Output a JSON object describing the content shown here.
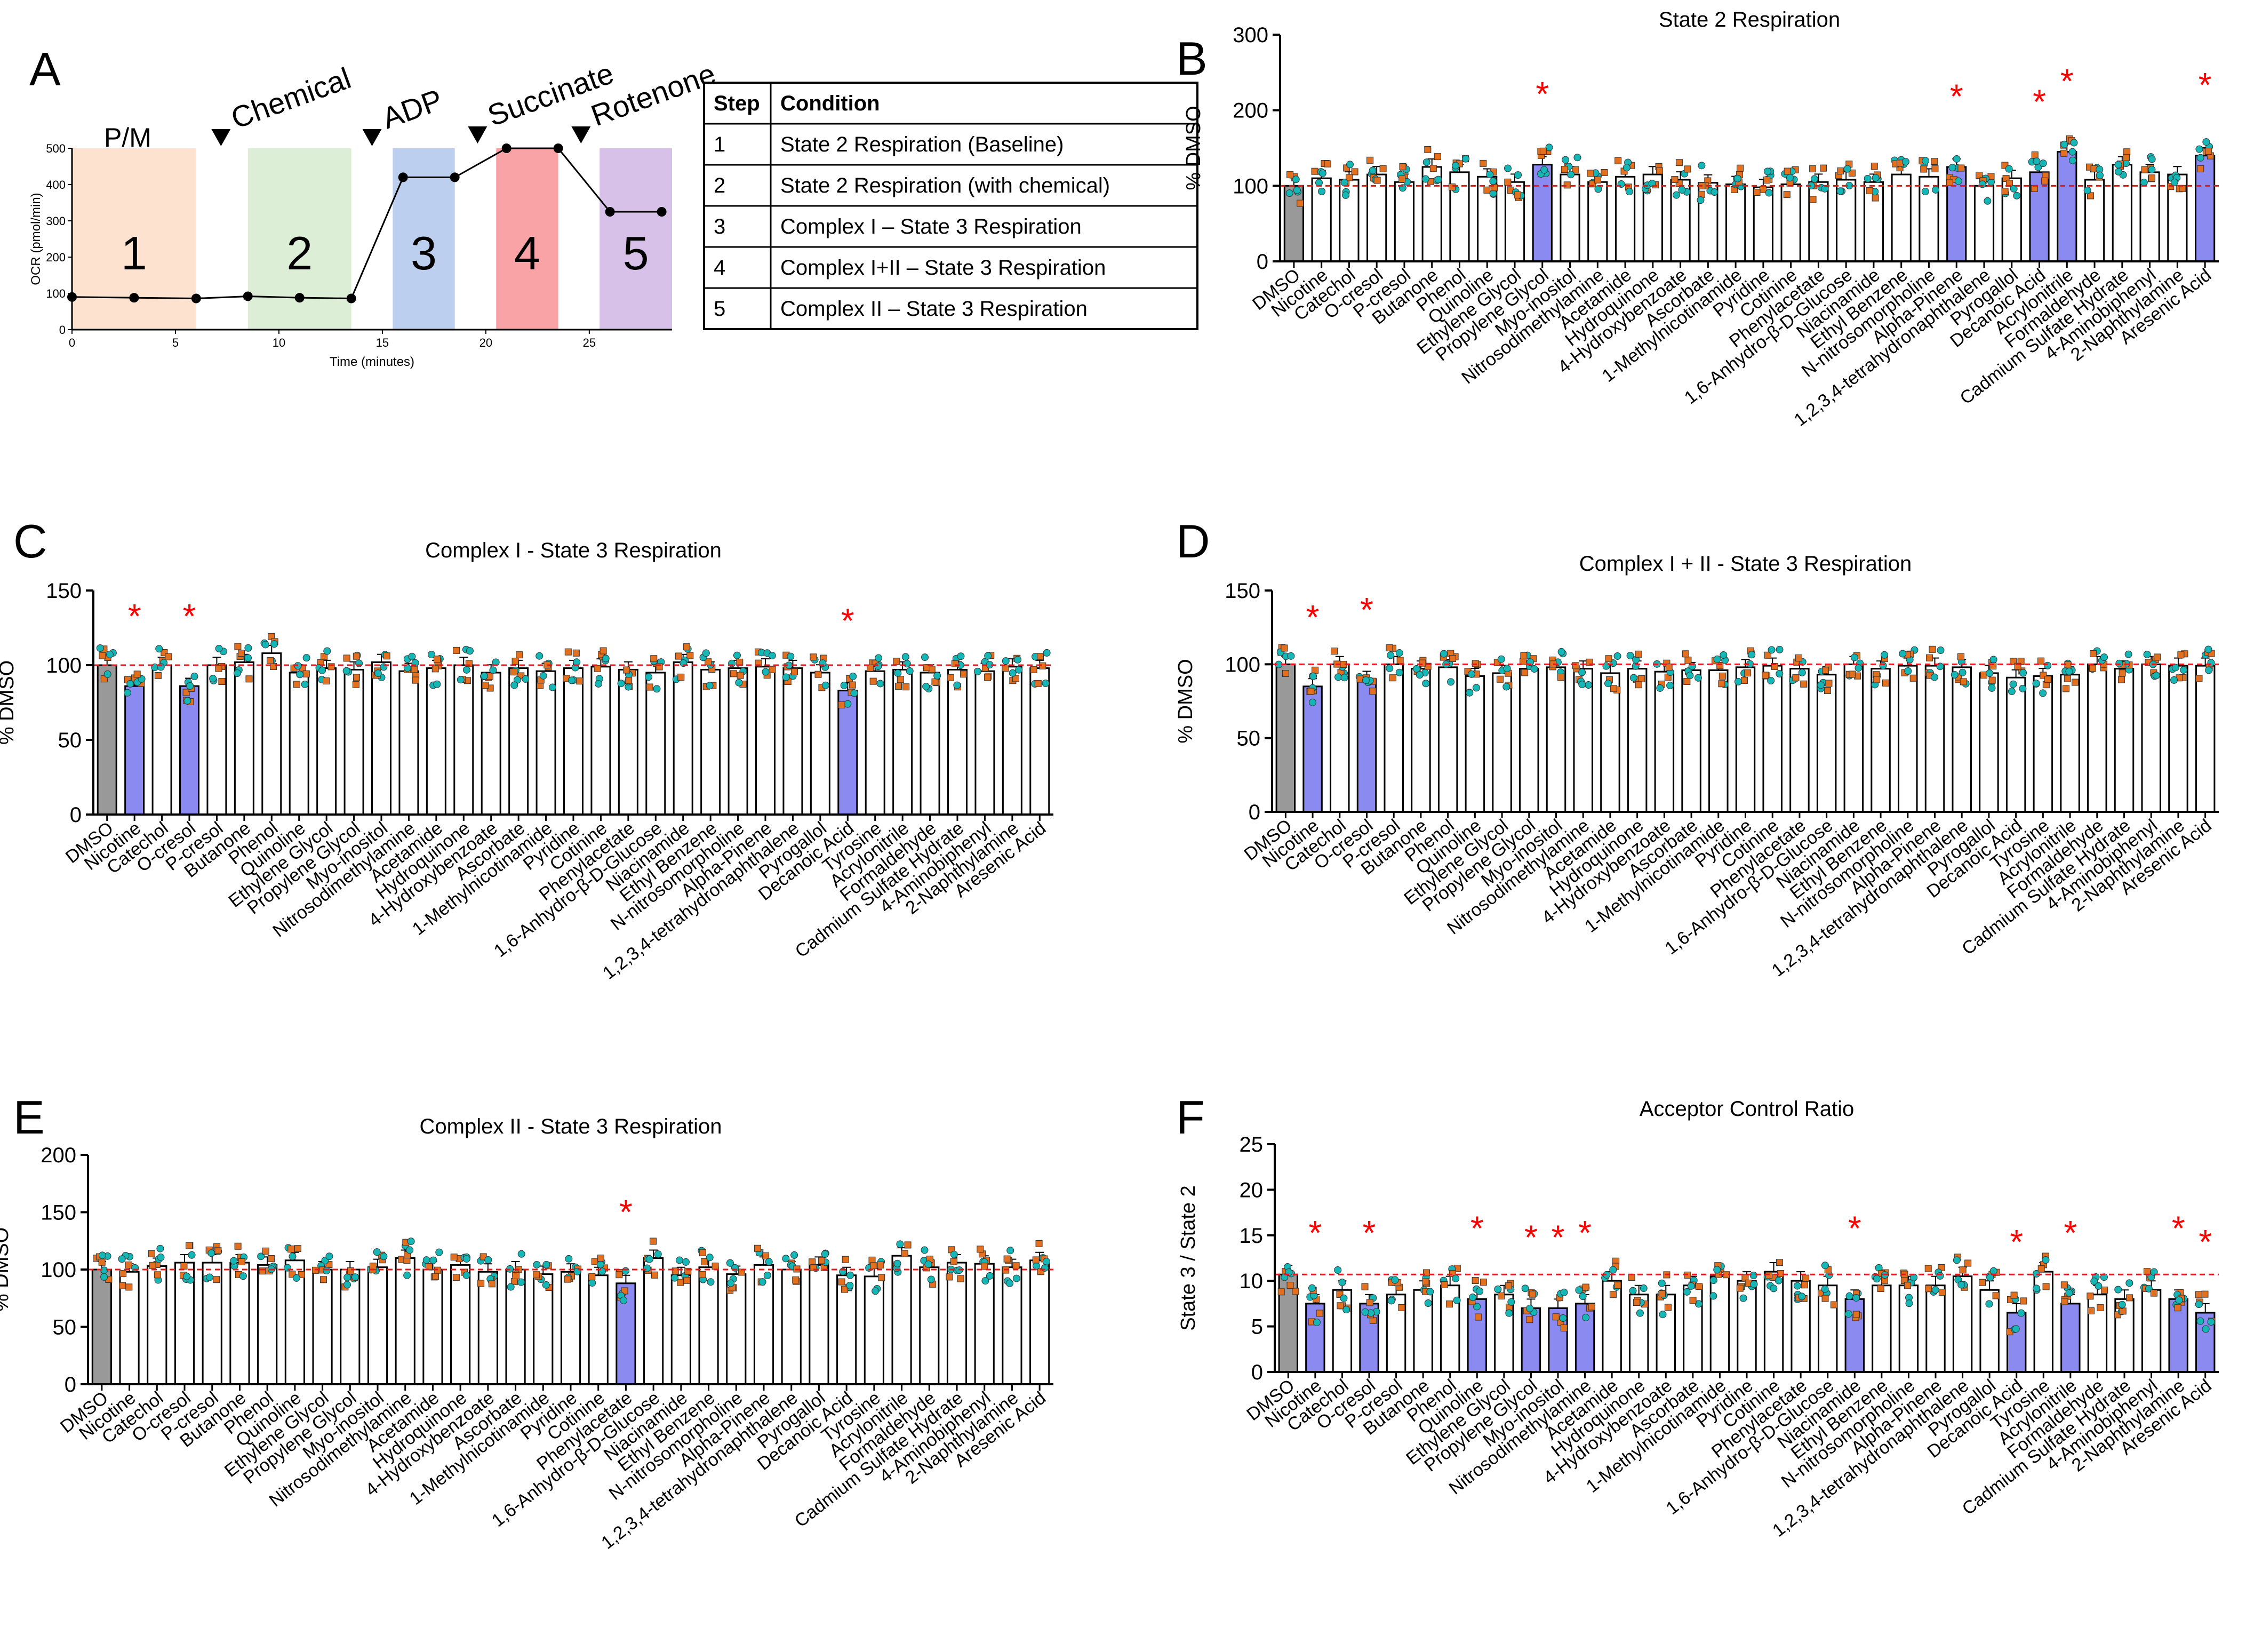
{
  "colors": {
    "control_bar": "#999999",
    "sig_bar": "#8a8af0",
    "orange_point": "#e2701f",
    "teal_point": "#15b6b6",
    "reference_line": "#e21a1a",
    "star": "#ff0000",
    "step1": "#fde3cf",
    "step2": "#dcefd6",
    "step3": "#bccfee",
    "step4": "#f9a3a6",
    "step5": "#d8c1e8"
  },
  "panel_a": {
    "letter": "A",
    "y_label": "OCR (pmol/min)",
    "x_label": "Time (minutes)",
    "y_ticks": [
      "0",
      "100",
      "200",
      "300",
      "400",
      "500"
    ],
    "x_ticks": [
      "0",
      "5",
      "10",
      "15",
      "20",
      "25"
    ],
    "injections": [
      "Chemical",
      "ADP",
      "Succinate",
      "Rotenone"
    ],
    "start_label": "P/M",
    "region_numbers": [
      "1",
      "2",
      "3",
      "4",
      "5"
    ],
    "table": {
      "headers": [
        "Step",
        "Condition"
      ],
      "rows": [
        [
          "1",
          "State 2 Respiration (Baseline)"
        ],
        [
          "2",
          "State 2 Respiration (with chemical)"
        ],
        [
          "3",
          "Complex I – State 3 Respiration"
        ],
        [
          "4",
          "Complex I+II – State 3 Respiration"
        ],
        [
          "5",
          "Complex II – State 3 Respiration"
        ]
      ]
    }
  },
  "chart_data": [
    {
      "type": "line",
      "panel": "A",
      "title": "",
      "xlabel": "Time (minutes)",
      "ylabel": "OCR (pmol/min)",
      "xlim": [
        0,
        29
      ],
      "ylim": [
        0,
        500
      ],
      "x": [
        0,
        3,
        6,
        8.5,
        11,
        13.5,
        16,
        18.5,
        21,
        23.5,
        26,
        28.5
      ],
      "values": [
        90,
        88,
        86,
        92,
        88,
        86,
        420,
        420,
        500,
        500,
        325,
        325
      ]
    },
    {
      "type": "bar",
      "panel": "B",
      "title": "State 2 Respiration",
      "xlabel": "",
      "ylabel": "% DMSO",
      "ylim": [
        0,
        300
      ],
      "yticks": [
        "0",
        "100",
        "200",
        "300"
      ],
      "reference": 100,
      "categories": [
        "DMSO",
        "Nicotine",
        "Catechol",
        "O-cresol",
        "P-cresol",
        "Butanone",
        "Phenol",
        "Quinoline",
        "Ethylene Glycol",
        "Propylene Glycol",
        "Myo-inositol",
        "Nitrosodimethylamine",
        "Acetamide",
        "Hydroquinone",
        "4-Hydroxybenzoate",
        "Ascorbate",
        "1-Methylnicotinamide",
        "Pyridine",
        "Cotinine",
        "Phenylacetate",
        "1,6-Anhydro-β-D-Glucose",
        "Niacinamide",
        "Ethyl Benzene",
        "N-nitrosomorpholine",
        "Alpha-Pinene",
        "1,2,3,4-tetrahydronaphthalene",
        "Pyrogallol",
        "Decanoic Acid",
        "Acrylonitrile",
        "Formaldehyde",
        "Cadmium Sulfate Hydrate",
        "4-Aminobiphenyl",
        "2-Naphthylamine",
        "Aresenic Acid"
      ],
      "values": [
        100,
        110,
        108,
        115,
        105,
        125,
        118,
        112,
        105,
        128,
        115,
        105,
        112,
        115,
        108,
        104,
        102,
        98,
        102,
        105,
        108,
        105,
        115,
        112,
        125,
        100,
        110,
        118,
        145,
        108,
        128,
        118,
        115,
        140
      ],
      "significant": [
        false,
        false,
        false,
        false,
        false,
        false,
        false,
        false,
        false,
        true,
        false,
        false,
        false,
        false,
        false,
        false,
        false,
        false,
        false,
        false,
        false,
        false,
        false,
        false,
        true,
        false,
        false,
        true,
        true,
        false,
        false,
        false,
        false,
        true
      ]
    },
    {
      "type": "bar",
      "panel": "C",
      "title": "Complex I - State 3 Respiration",
      "xlabel": "",
      "ylabel": "% DMSO",
      "ylim": [
        0,
        150
      ],
      "yticks": [
        "0",
        "50",
        "100",
        "150"
      ],
      "reference": 100,
      "categories": [
        "DMSO",
        "Nicotine",
        "Catechol",
        "O-cresol",
        "P-cresol",
        "Butanone",
        "Phenol",
        "Quinoline",
        "Ethylene Glycol",
        "Propylene Glycol",
        "Myo-inositol",
        "Nitrosodimethylamine",
        "Acetamide",
        "Hydroquinone",
        "4-Hydroxybenzoate",
        "Ascorbate",
        "1-Methylnicotinamide",
        "Pyridine",
        "Cotinine",
        "Phenylacetate",
        "1,6-Anhydro-β-D-Glucose",
        "Niacinamide",
        "Ethyl Benzene",
        "N-nitrosomorpholine",
        "Alpha-Pinene",
        "1,2,3,4-tetrahydronaphthalene",
        "Pyrogallol",
        "Decanoic Acid",
        "Tyrosine",
        "Acrylonitrile",
        "Formaldehyde",
        "Cadmium Sulfate Hydrate",
        "4-Aminobiphenyl",
        "2-Naphthylamine",
        "Aresenic Acid"
      ],
      "values": [
        100,
        86,
        100,
        86,
        100,
        102,
        108,
        95,
        98,
        97,
        102,
        96,
        98,
        100,
        95,
        98,
        96,
        98,
        99,
        97,
        95,
        102,
        97,
        98,
        99,
        98,
        95,
        83,
        96,
        97,
        95,
        97,
        96,
        99,
        98
      ],
      "significant": [
        false,
        true,
        false,
        true,
        false,
        false,
        false,
        false,
        false,
        false,
        false,
        false,
        false,
        false,
        false,
        false,
        false,
        false,
        false,
        false,
        false,
        false,
        false,
        false,
        false,
        false,
        false,
        true,
        false,
        false,
        false,
        false,
        false,
        false,
        false
      ]
    },
    {
      "type": "bar",
      "panel": "D",
      "title": "Complex I + II - State 3 Respiration",
      "xlabel": "",
      "ylabel": "% DMSO",
      "ylim": [
        0,
        150
      ],
      "yticks": [
        "0",
        "50",
        "100",
        "150"
      ],
      "reference": 100,
      "categories": [
        "DMSO",
        "Nicotine",
        "Catechol",
        "O-cresol",
        "P-cresol",
        "Butanone",
        "Phenol",
        "Quinoline",
        "Ethylene Glycol",
        "Propylene Glycol",
        "Myo-inositol",
        "Nitrosodimethylamine",
        "Acetamide",
        "Hydroquinone",
        "4-Hydroxybenzoate",
        "Ascorbate",
        "1-Methylnicotinamide",
        "Pyridine",
        "Cotinine",
        "Phenylacetate",
        "1,6-Anhydro-β-D-Glucose",
        "Niacinamide",
        "Ethyl Benzene",
        "N-nitrosomorpholine",
        "Alpha-Pinene",
        "1,2,3,4-tetrahydronaphthalene",
        "Pyrogallol",
        "Decanoic Acid",
        "Tyrosine",
        "Acrylonitrile",
        "Formaldehyde",
        "Cadmium Sulfate Hydrate",
        "4-Aminobiphenyl",
        "2-Naphthylamine",
        "Aresenic Acid"
      ],
      "values": [
        100,
        85,
        100,
        90,
        100,
        97,
        98,
        92,
        94,
        97,
        98,
        97,
        94,
        97,
        95,
        96,
        96,
        98,
        99,
        97,
        93,
        100,
        97,
        99,
        99,
        98,
        94,
        91,
        92,
        93,
        100,
        97,
        100,
        99,
        99
      ],
      "significant": [
        false,
        true,
        false,
        true,
        false,
        false,
        false,
        false,
        false,
        false,
        false,
        false,
        false,
        false,
        false,
        false,
        false,
        false,
        false,
        false,
        false,
        false,
        false,
        false,
        false,
        false,
        false,
        false,
        false,
        false,
        false,
        false,
        false,
        false,
        false
      ]
    },
    {
      "type": "bar",
      "panel": "E",
      "title": "Complex II - State 3 Respiration",
      "xlabel": "",
      "ylabel": "% DMSO",
      "ylim": [
        0,
        200
      ],
      "yticks": [
        "0",
        "50",
        "100",
        "150",
        "200"
      ],
      "reference": 100,
      "categories": [
        "DMSO",
        "Nicotine",
        "Catechol",
        "O-cresol",
        "P-cresol",
        "Butanone",
        "Phenol",
        "Quinoline",
        "Ethylene Glycol",
        "Propylene Glycol",
        "Myo-inositol",
        "Nitrosodimethylamine",
        "Acetamide",
        "Hydroquinone",
        "4-Hydroxybenzoate",
        "Ascorbate",
        "1-Methylnicotinamide",
        "Pyridine",
        "Cotinine",
        "Phenylacetate",
        "1,6-Anhydro-β-D-Glucose",
        "Niacinamide",
        "Ethyl Benzene",
        "N-nitrosomorpholine",
        "Alpha-Pinene",
        "1,2,3,4-tetrahydronaphthalene",
        "Pyrogallol",
        "Decanoic Acid",
        "Tyrosine",
        "Acrylonitrile",
        "Formaldehyde",
        "Cadmium Sulfate Hydrate",
        "4-Aminobiphenyl",
        "2-Naphthylamine",
        "Aresenic Acid"
      ],
      "values": [
        100,
        98,
        103,
        106,
        106,
        106,
        104,
        108,
        100,
        100,
        102,
        110,
        100,
        104,
        98,
        100,
        96,
        98,
        95,
        88,
        110,
        95,
        102,
        96,
        104,
        100,
        104,
        95,
        94,
        112,
        102,
        106,
        105,
        102,
        108
      ],
      "significant": [
        false,
        false,
        false,
        false,
        false,
        false,
        false,
        false,
        false,
        false,
        false,
        false,
        false,
        false,
        false,
        false,
        false,
        false,
        false,
        true,
        false,
        false,
        false,
        false,
        false,
        false,
        false,
        false,
        false,
        false,
        false,
        false,
        false,
        false,
        false
      ]
    },
    {
      "type": "bar",
      "panel": "F",
      "title": "Acceptor Control Ratio",
      "xlabel": "",
      "ylabel": "State 3 / State 2",
      "ylim": [
        0,
        25
      ],
      "yticks": [
        "0",
        "5",
        "10",
        "15",
        "20",
        "25"
      ],
      "reference": 10.7,
      "categories": [
        "DMSO",
        "Nicotine",
        "Catechol",
        "O-cresol",
        "P-cresol",
        "Butanone",
        "Phenol",
        "Quinoline",
        "Ethylene Glycol",
        "Propylene Glycol",
        "Myo-inositol",
        "Nitrosodimethylamine",
        "Acetamide",
        "Hydroquinone",
        "4-Hydroxybenzoate",
        "Ascorbate",
        "1-Methylnicotinamide",
        "Pyridine",
        "Cotinine",
        "Phenylacetate",
        "1,6-Anhydro-β-D-Glucose",
        "Niacinamide",
        "Ethyl Benzene",
        "N-nitrosomorpholine",
        "Alpha-Pinene",
        "1,2,3,4-tetrahydronaphthalene",
        "Pyrogallol",
        "Decanoic Acid",
        "Tyrosine",
        "Acrylonitrile",
        "Formaldehyde",
        "Cadmium Sulfate Hydrate",
        "4-Aminobiphenyl",
        "2-Naphthylamine",
        "Aresenic Acid"
      ],
      "values": [
        10.7,
        7.5,
        9,
        7.5,
        8.5,
        9,
        9.5,
        8,
        8.5,
        7,
        7,
        7.5,
        10,
        8.5,
        8.5,
        9.5,
        10.5,
        10,
        11,
        10,
        9.5,
        8,
        9.5,
        9.5,
        9.5,
        10.5,
        9,
        6.5,
        11,
        7.5,
        8.5,
        8,
        9,
        8,
        6.5
      ],
      "significant": [
        false,
        true,
        false,
        true,
        false,
        false,
        false,
        true,
        false,
        true,
        true,
        true,
        false,
        false,
        false,
        false,
        false,
        false,
        false,
        false,
        false,
        true,
        false,
        false,
        false,
        false,
        false,
        true,
        false,
        true,
        false,
        false,
        false,
        true,
        true
      ]
    }
  ]
}
